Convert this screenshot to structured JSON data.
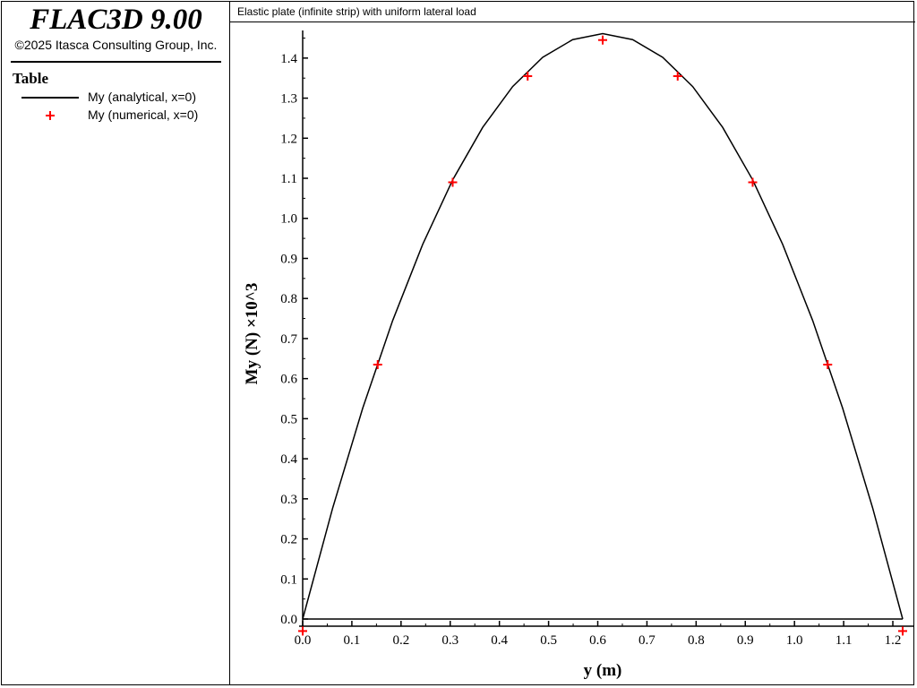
{
  "app": {
    "title": "FLAC3D 9.00",
    "copyright": "©2025 Itasca Consulting Group, Inc."
  },
  "legend": {
    "heading": "Table",
    "items": [
      {
        "label": "My (analytical, x=0)",
        "style": "line",
        "color": "#000000"
      },
      {
        "label": "My (numerical, x=0)",
        "style": "plus",
        "color": "#ff0000"
      }
    ]
  },
  "chart_data": {
    "type": "line",
    "title": "Elastic plate (infinite strip) with uniform lateral load",
    "xlabel": "y (m)",
    "ylabel": "My (N) ×10^3",
    "xlim": [
      0,
      1.22
    ],
    "ylim": [
      0,
      1.46
    ],
    "grid": false,
    "legend_placement": "left-panel",
    "x_ticks": [
      "0.0",
      "0.1",
      "0.2",
      "0.3",
      "0.4",
      "0.5",
      "0.6",
      "0.7",
      "0.8",
      "0.9",
      "1.0",
      "1.1",
      "1.2"
    ],
    "y_ticks": [
      "0.0",
      "0.1",
      "0.2",
      "0.3",
      "0.4",
      "0.5",
      "0.6",
      "0.7",
      "0.8",
      "0.9",
      "1.0",
      "1.1",
      "1.2",
      "1.3",
      "1.4"
    ],
    "series": [
      {
        "name": "My (analytical, x=0)",
        "style": "line",
        "color": "#000000",
        "x": [
          0,
          0.061,
          0.122,
          0.183,
          0.244,
          0.305,
          0.366,
          0.427,
          0.488,
          0.549,
          0.61,
          0.671,
          0.732,
          0.793,
          0.854,
          0.915,
          0.976,
          1.037,
          1.098,
          1.159,
          1.22
        ],
        "y": [
          0,
          0.277,
          0.526,
          0.745,
          0.935,
          1.096,
          1.227,
          1.329,
          1.402,
          1.446,
          1.461,
          1.446,
          1.402,
          1.329,
          1.227,
          1.096,
          0.935,
          0.745,
          0.526,
          0.277,
          0
        ]
      },
      {
        "name": "My (numerical, x=0)",
        "style": "plus",
        "color": "#ff0000",
        "x": [
          0,
          0.1525,
          0.305,
          0.4575,
          0.61,
          0.7625,
          0.915,
          1.0675,
          1.22
        ],
        "y": [
          -0.03,
          0.635,
          1.09,
          1.355,
          1.445,
          1.355,
          1.09,
          0.635,
          -0.03
        ]
      }
    ]
  }
}
